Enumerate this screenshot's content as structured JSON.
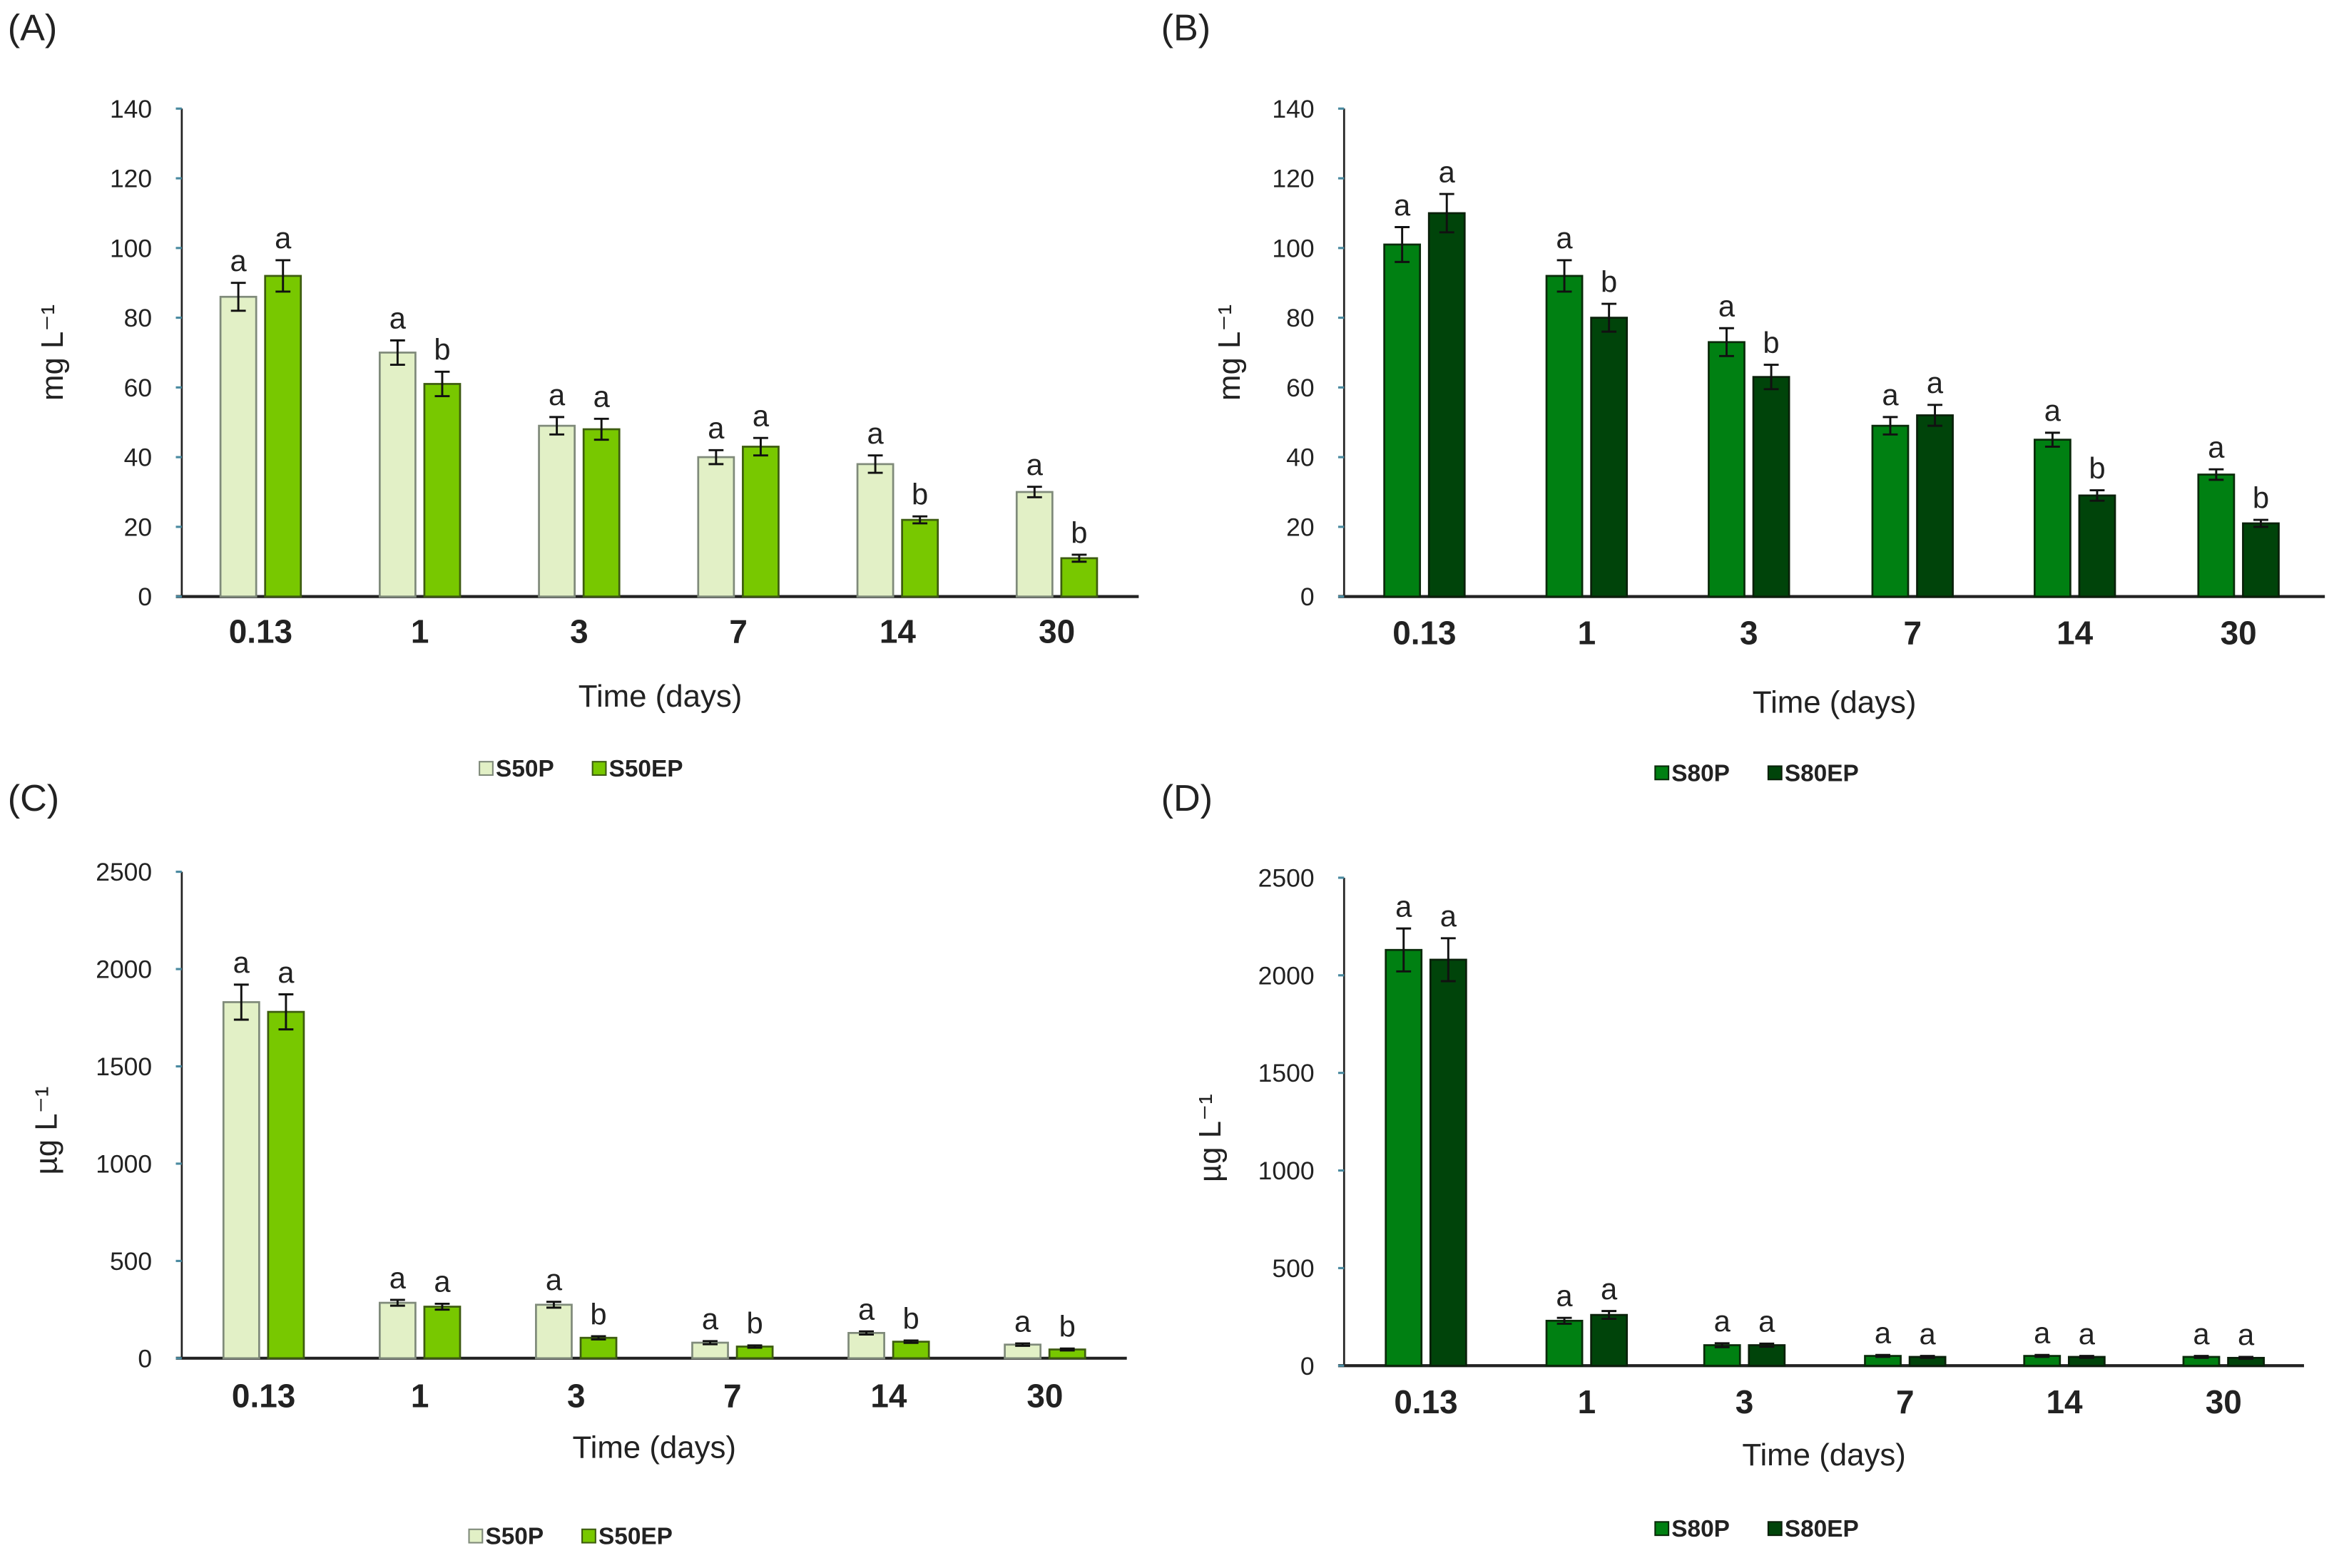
{
  "chart_data": [
    {
      "panel": "(A)",
      "type": "bar",
      "ylabel": "mg L⁻¹",
      "xlabel": "Time (days)",
      "ylim": [
        0,
        140
      ],
      "yticks": [
        0,
        20,
        40,
        60,
        80,
        100,
        120,
        140
      ],
      "categories": [
        "0.13",
        "1",
        "3",
        "7",
        "14",
        "30"
      ],
      "series": [
        {
          "name": "S50P",
          "color": "#e2f0c6",
          "stroke": "#7f8a7a",
          "values": [
            86,
            70,
            49,
            40,
            38,
            30
          ],
          "errors": [
            4,
            3.5,
            2.5,
            2,
            2.5,
            1.5
          ],
          "letters": [
            "a",
            "a",
            "a",
            "a",
            "a",
            "a"
          ]
        },
        {
          "name": "S50EP",
          "color": "#78c800",
          "stroke": "#3d5c10",
          "values": [
            92,
            61,
            48,
            43,
            22,
            11
          ],
          "errors": [
            4.5,
            3.5,
            3,
            2.5,
            1,
            1
          ],
          "letters": [
            "a",
            "b",
            "a",
            "a",
            "b",
            "b"
          ]
        }
      ]
    },
    {
      "panel": "(B)",
      "type": "bar",
      "ylabel": "mg L⁻¹",
      "xlabel": "Time (days)",
      "ylim": [
        0,
        140
      ],
      "yticks": [
        0,
        20,
        40,
        60,
        80,
        100,
        120,
        140
      ],
      "categories": [
        "0.13",
        "1",
        "3",
        "7",
        "14",
        "30"
      ],
      "series": [
        {
          "name": "S80P",
          "color": "#008012",
          "stroke": "#0a2a0a",
          "values": [
            101,
            92,
            73,
            49,
            45,
            35
          ],
          "errors": [
            5,
            4.5,
            4,
            2.5,
            2,
            1.5
          ],
          "letters": [
            "a",
            "a",
            "a",
            "a",
            "a",
            "a"
          ]
        },
        {
          "name": "S80EP",
          "color": "#00440a",
          "stroke": "#0a200a",
          "values": [
            110,
            80,
            63,
            52,
            29,
            21
          ],
          "errors": [
            5.5,
            4,
            3.5,
            3,
            1.5,
            1
          ],
          "letters": [
            "a",
            "b",
            "b",
            "a",
            "b",
            "b"
          ]
        }
      ]
    },
    {
      "panel": "(C)",
      "type": "bar",
      "ylabel": "µg L⁻¹",
      "xlabel": "Time (days)",
      "ylim": [
        0,
        2500
      ],
      "yticks": [
        0,
        500,
        1000,
        1500,
        2000,
        2500
      ],
      "categories": [
        "0.13",
        "1",
        "3",
        "7",
        "14",
        "30"
      ],
      "series": [
        {
          "name": "S50P",
          "color": "#e2f0c6",
          "stroke": "#7f8a7a",
          "values": [
            1830,
            285,
            275,
            80,
            130,
            70
          ],
          "errors": [
            90,
            15,
            15,
            8,
            8,
            6
          ],
          "letters": [
            "a",
            "a",
            "a",
            "a",
            "a",
            "a"
          ]
        },
        {
          "name": "S50EP",
          "color": "#78c800",
          "stroke": "#3d5c10",
          "values": [
            1780,
            265,
            105,
            60,
            85,
            45
          ],
          "errors": [
            90,
            15,
            8,
            6,
            6,
            5
          ],
          "letters": [
            "a",
            "a",
            "b",
            "b",
            "b",
            "b"
          ]
        }
      ]
    },
    {
      "panel": "(D)",
      "type": "bar",
      "ylabel": "µg L⁻¹",
      "xlabel": "Time (days)",
      "ylim": [
        0,
        2500
      ],
      "yticks": [
        0,
        500,
        1000,
        1500,
        2000,
        2500
      ],
      "categories": [
        "0.13",
        "1",
        "3",
        "7",
        "14",
        "30"
      ],
      "series": [
        {
          "name": "S80P",
          "color": "#008012",
          "stroke": "#0a2a0a",
          "values": [
            2130,
            230,
            105,
            50,
            50,
            45
          ],
          "errors": [
            110,
            15,
            10,
            5,
            5,
            5
          ],
          "letters": [
            "a",
            "a",
            "a",
            "a",
            "a",
            "a"
          ]
        },
        {
          "name": "S80EP",
          "color": "#00440a",
          "stroke": "#0a200a",
          "values": [
            2080,
            260,
            105,
            45,
            45,
            40
          ],
          "errors": [
            110,
            20,
            8,
            5,
            5,
            5
          ],
          "letters": [
            "a",
            "a",
            "a",
            "a",
            "a",
            "a"
          ]
        }
      ]
    }
  ]
}
